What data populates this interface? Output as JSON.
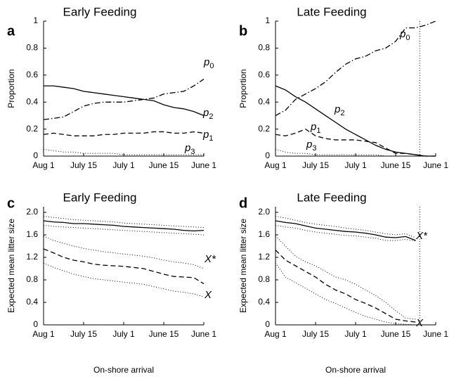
{
  "chart_data": [
    {
      "type": "line",
      "panel": "a",
      "title": "Early Feeding",
      "ylabel": "Proportion",
      "x": [
        0,
        0.25,
        0.5,
        0.75,
        1,
        1.25,
        1.5,
        1.75,
        2,
        2.25,
        2.5,
        2.75,
        3,
        3.25,
        3.5,
        3.75,
        4
      ],
      "xlim": [
        0,
        4
      ],
      "xticks": [
        {
          "value": 0,
          "label": "Aug 1"
        },
        {
          "value": 1,
          "label": "July 15"
        },
        {
          "value": 2,
          "label": "July 1"
        },
        {
          "value": 3,
          "label": "June 15"
        },
        {
          "value": 4,
          "label": "June 1"
        }
      ],
      "ylim": [
        0,
        1
      ],
      "yticks": [
        0,
        0.2,
        0.4,
        0.6,
        0.8,
        1
      ],
      "series": [
        {
          "name": "p",
          "subscript": "0",
          "color": "#000",
          "style": "dashdot",
          "values": [
            0.27,
            0.28,
            0.29,
            0.33,
            0.37,
            0.39,
            0.4,
            0.4,
            0.4,
            0.41,
            0.42,
            0.43,
            0.46,
            0.47,
            0.48,
            0.52,
            0.57
          ]
        },
        {
          "name": "p",
          "subscript": "2",
          "color": "#000",
          "style": "solid",
          "values": [
            0.52,
            0.52,
            0.51,
            0.5,
            0.48,
            0.47,
            0.46,
            0.45,
            0.44,
            0.43,
            0.42,
            0.41,
            0.38,
            0.36,
            0.35,
            0.33,
            0.3
          ]
        },
        {
          "name": "p",
          "subscript": "1",
          "color": "#000",
          "style": "dashed",
          "values": [
            0.16,
            0.17,
            0.16,
            0.15,
            0.15,
            0.15,
            0.16,
            0.16,
            0.17,
            0.17,
            0.17,
            0.18,
            0.18,
            0.17,
            0.17,
            0.18,
            0.17
          ]
        },
        {
          "name": "p",
          "subscript": "3",
          "color": "#000",
          "style": "dotted",
          "values": [
            0.05,
            0.04,
            0.03,
            0.03,
            0.02,
            0.02,
            0.02,
            0.02,
            0.01,
            0.01,
            0.01,
            0.01,
            0.01,
            0.01,
            0.01,
            0.01,
            0.01
          ]
        }
      ]
    },
    {
      "type": "line",
      "panel": "b",
      "title": "Late Feeding",
      "ylabel": "Proportion",
      "x": [
        0,
        0.25,
        0.5,
        0.75,
        1,
        1.25,
        1.5,
        1.75,
        2,
        2.25,
        2.5,
        2.75,
        3,
        3.25,
        3.5,
        3.75,
        4
      ],
      "xlim": [
        0,
        4
      ],
      "xticks": [
        {
          "value": 0,
          "label": "Aug 1"
        },
        {
          "value": 1,
          "label": "July 15"
        },
        {
          "value": 2,
          "label": "July 1"
        },
        {
          "value": 3,
          "label": "June 15"
        },
        {
          "value": 4,
          "label": "June 1"
        }
      ],
      "ylim": [
        0,
        1
      ],
      "yticks": [
        0,
        0.2,
        0.4,
        0.6,
        0.8,
        1
      ],
      "vline": 3.6,
      "series": [
        {
          "name": "p",
          "subscript": "0",
          "color": "#000",
          "style": "dashdot",
          "values": [
            0.3,
            0.34,
            0.42,
            0.46,
            0.5,
            0.55,
            0.62,
            0.68,
            0.72,
            0.74,
            0.78,
            0.8,
            0.85,
            0.95,
            0.95,
            0.97,
            1.0
          ]
        },
        {
          "name": "p",
          "subscript": "2",
          "color": "#000",
          "style": "solid",
          "values": [
            0.52,
            0.49,
            0.44,
            0.4,
            0.35,
            0.3,
            0.25,
            0.2,
            0.16,
            0.12,
            0.08,
            0.05,
            0.03,
            0.02,
            0.01,
            0,
            0
          ]
        },
        {
          "name": "p",
          "subscript": "1",
          "color": "#000",
          "style": "dashed",
          "values": [
            0.16,
            0.15,
            0.17,
            0.2,
            0.15,
            0.13,
            0.12,
            0.12,
            0.12,
            0.11,
            0.1,
            0.06,
            0.02,
            0.02,
            0.01,
            0,
            0
          ]
        },
        {
          "name": "p",
          "subscript": "3",
          "color": "#000",
          "style": "dotted",
          "values": [
            0.05,
            0.03,
            0.02,
            0.02,
            0.01,
            0.01,
            0.01,
            0.01,
            0.01,
            0.01,
            0.01,
            0,
            0,
            0,
            0,
            0,
            0
          ]
        }
      ]
    },
    {
      "type": "line",
      "panel": "c",
      "title": "Early Feeding",
      "ylabel": "Expected mean litter size",
      "xlabel": "On-shore arrival",
      "x": [
        0,
        0.25,
        0.5,
        0.75,
        1,
        1.25,
        1.5,
        1.75,
        2,
        2.25,
        2.5,
        2.75,
        3,
        3.25,
        3.5,
        3.75,
        4
      ],
      "xlim": [
        0,
        4
      ],
      "xticks": [
        {
          "value": 0,
          "label": "Aug 1"
        },
        {
          "value": 1,
          "label": "July 15"
        },
        {
          "value": 2,
          "label": "July 1"
        },
        {
          "value": 3,
          "label": "June 15"
        },
        {
          "value": 4,
          "label": "June 1"
        }
      ],
      "ylim": [
        0,
        2.1
      ],
      "yticks": [
        0,
        0.4,
        0.8,
        1.2,
        1.6,
        {
          "value": 2,
          "label": "2.0"
        }
      ],
      "series": [
        {
          "name": "X*",
          "color": "#000",
          "style": "solid",
          "values": [
            1.85,
            1.83,
            1.82,
            1.8,
            1.8,
            1.79,
            1.78,
            1.77,
            1.75,
            1.74,
            1.73,
            1.72,
            1.71,
            1.7,
            1.68,
            1.67,
            1.68
          ]
        },
        {
          "color": "#000",
          "style": "dotted",
          "values": [
            1.93,
            1.91,
            1.89,
            1.87,
            1.86,
            1.85,
            1.84,
            1.83,
            1.81,
            1.8,
            1.79,
            1.78,
            1.77,
            1.76,
            1.75,
            1.74,
            1.73
          ]
        },
        {
          "color": "#000",
          "style": "dotted",
          "values": [
            1.77,
            1.75,
            1.74,
            1.73,
            1.72,
            1.71,
            1.7,
            1.69,
            1.68,
            1.67,
            1.66,
            1.65,
            1.64,
            1.63,
            1.62,
            1.61,
            1.6
          ]
        },
        {
          "name": "X",
          "color": "#000",
          "style": "dashed",
          "values": [
            1.35,
            1.28,
            1.2,
            1.15,
            1.12,
            1.08,
            1.06,
            1.05,
            1.04,
            1.02,
            1.0,
            0.95,
            0.9,
            0.86,
            0.85,
            0.84,
            0.73
          ]
        },
        {
          "color": "#000",
          "style": "dotted",
          "values": [
            1.58,
            1.5,
            1.45,
            1.4,
            1.36,
            1.33,
            1.3,
            1.28,
            1.26,
            1.24,
            1.22,
            1.19,
            1.15,
            1.12,
            1.1,
            1.07,
            1.0
          ]
        },
        {
          "color": "#000",
          "style": "dotted",
          "values": [
            1.1,
            1.02,
            0.96,
            0.9,
            0.86,
            0.82,
            0.8,
            0.78,
            0.76,
            0.74,
            0.72,
            0.68,
            0.64,
            0.6,
            0.58,
            0.55,
            0.5
          ]
        }
      ]
    },
    {
      "type": "line",
      "panel": "d",
      "title": "Late Feeding",
      "ylabel": "Expected mean litter size",
      "xlabel": "On-shore arrival",
      "x": [
        0,
        0.25,
        0.5,
        0.75,
        1,
        1.25,
        1.5,
        1.75,
        2,
        2.25,
        2.5,
        2.75,
        3,
        3.25,
        3.5,
        3.75,
        4
      ],
      "xlim": [
        0,
        4
      ],
      "xticks": [
        {
          "value": 0,
          "label": "Aug 1"
        },
        {
          "value": 1,
          "label": "July 15"
        },
        {
          "value": 2,
          "label": "July 1"
        },
        {
          "value": 3,
          "label": "June 15"
        },
        {
          "value": 4,
          "label": "June 1"
        }
      ],
      "ylim": [
        0,
        2.1
      ],
      "yticks": [
        0,
        0.4,
        0.8,
        1.2,
        1.6,
        {
          "value": 2,
          "label": "2.0"
        }
      ],
      "vline": 3.6,
      "series": [
        {
          "name": "X*",
          "color": "#000",
          "style": "solid",
          "values": [
            1.85,
            1.82,
            1.8,
            1.76,
            1.72,
            1.7,
            1.68,
            1.66,
            1.65,
            1.63,
            1.6,
            1.56,
            1.55,
            1.57,
            1.5,
            null,
            null
          ]
        },
        {
          "color": "#000",
          "style": "dotted",
          "values": [
            1.93,
            1.9,
            1.86,
            1.82,
            1.79,
            1.77,
            1.75,
            1.72,
            1.7,
            1.68,
            1.65,
            1.62,
            1.6,
            1.62,
            1.55,
            null,
            null
          ]
        },
        {
          "color": "#000",
          "style": "dotted",
          "values": [
            1.77,
            1.74,
            1.72,
            1.68,
            1.65,
            1.63,
            1.61,
            1.59,
            1.58,
            1.56,
            1.54,
            1.5,
            1.5,
            1.52,
            1.49,
            null,
            null
          ]
        },
        {
          "name": "X",
          "color": "#000",
          "style": "dashed",
          "values": [
            1.33,
            1.15,
            1.05,
            0.95,
            0.85,
            0.72,
            0.62,
            0.55,
            0.45,
            0.38,
            0.3,
            0.2,
            0.1,
            0.07,
            0.05,
            null,
            null
          ]
        },
        {
          "color": "#000",
          "style": "dotted",
          "values": [
            1.58,
            1.4,
            1.22,
            1.12,
            1.05,
            0.95,
            0.85,
            0.8,
            0.72,
            0.62,
            0.52,
            0.4,
            0.25,
            0.12,
            0.1,
            null,
            null
          ]
        },
        {
          "color": "#000",
          "style": "dotted",
          "values": [
            1.1,
            0.85,
            0.75,
            0.65,
            0.55,
            0.45,
            0.38,
            0.3,
            0.22,
            0.15,
            0.1,
            0.05,
            0.02,
            0.01,
            0,
            null,
            null
          ]
        }
      ]
    }
  ]
}
